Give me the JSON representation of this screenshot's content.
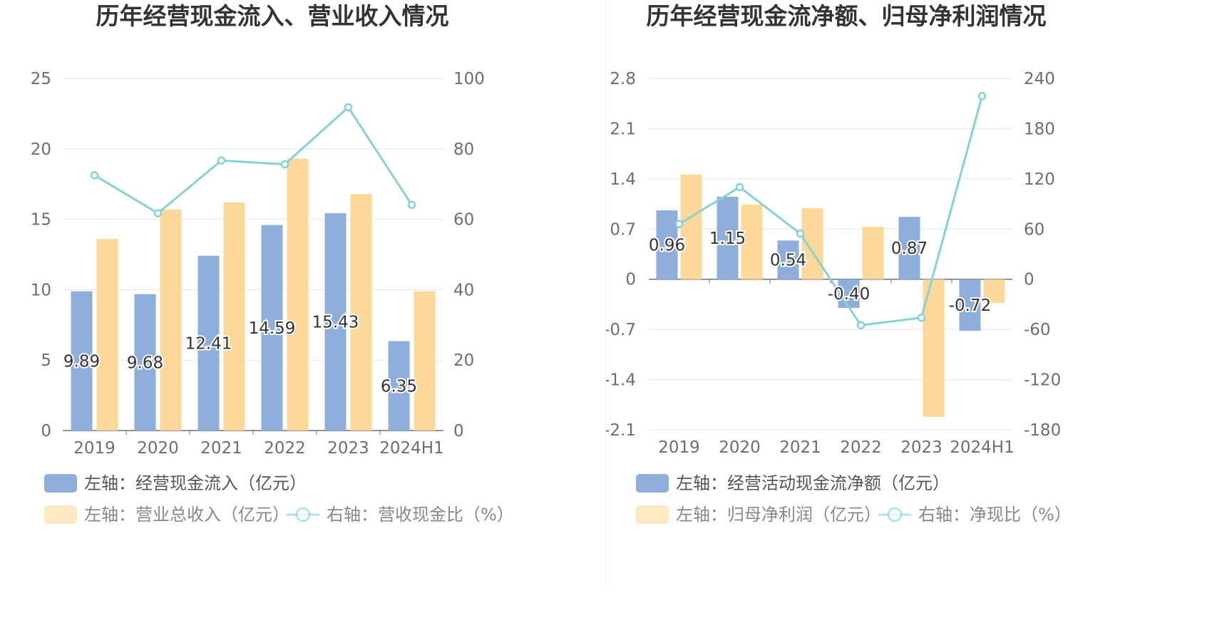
{
  "chart_data": [
    {
      "type": "bar",
      "title": "历年经营现金流入、营业收入情况",
      "categories": [
        "2019",
        "2020",
        "2021",
        "2022",
        "2023",
        "2024H1"
      ],
      "y_left": {
        "min": 0,
        "max": 25,
        "ticks": [
          "0",
          "5",
          "10",
          "15",
          "20",
          "25"
        ]
      },
      "y_right": {
        "min": 0,
        "max": 100,
        "ticks": [
          "0",
          "20",
          "40",
          "60",
          "80",
          "100"
        ]
      },
      "grid": true,
      "legend_position": "bottom",
      "series": [
        {
          "name": "左轴：经营现金流入（亿元）",
          "type": "bar",
          "axis": "left",
          "color": "#8eaedb",
          "values": [
            9.89,
            9.68,
            12.41,
            14.59,
            15.43,
            6.35
          ],
          "labels": [
            "9.89",
            "9.68",
            "12.41",
            "14.59",
            "15.43",
            "6.35"
          ]
        },
        {
          "name": "左轴：营业总收入（亿元）",
          "type": "bar",
          "axis": "left",
          "color": "#fdd899",
          "values": [
            13.6,
            15.7,
            16.2,
            19.3,
            16.8,
            9.9
          ]
        },
        {
          "name": "右轴：营收现金比（%）",
          "type": "line",
          "axis": "right",
          "color": "#86d3d6",
          "values": [
            72.5,
            61.7,
            76.7,
            75.6,
            91.8,
            64.1
          ]
        }
      ]
    },
    {
      "type": "bar",
      "title": "历年经营现金流净额、归母净利润情况",
      "categories": [
        "2019",
        "2020",
        "2021",
        "2022",
        "2023",
        "2024H1"
      ],
      "y_left": {
        "min": -2.1,
        "max": 2.8,
        "ticks": [
          "-2.1",
          "-1.4",
          "-0.7",
          "0",
          "0.7",
          "1.4",
          "2.1",
          "2.8"
        ]
      },
      "y_right": {
        "min": -180,
        "max": 240,
        "ticks": [
          "-180",
          "-120",
          "-60",
          "0",
          "60",
          "120",
          "180",
          "240"
        ]
      },
      "grid": true,
      "legend_position": "bottom",
      "series": [
        {
          "name": "左轴：经营活动现金流净额（亿元）",
          "type": "bar",
          "axis": "left",
          "color": "#8eaedb",
          "values": [
            0.96,
            1.15,
            0.54,
            -0.4,
            0.87,
            -0.72
          ],
          "labels": [
            "0.96",
            "1.15",
            "0.54",
            "-0.40",
            "0.87",
            "-0.72"
          ]
        },
        {
          "name": "左轴：归母净利润（亿元）",
          "type": "bar",
          "axis": "left",
          "color": "#fdd899",
          "values": [
            1.46,
            1.04,
            0.99,
            0.73,
            -1.92,
            -0.33
          ]
        },
        {
          "name": "右轴：净现比（%）",
          "type": "line",
          "axis": "right",
          "color": "#86d3d6",
          "values": [
            66,
            110,
            54.5,
            -55,
            -46,
            219
          ]
        }
      ]
    }
  ]
}
